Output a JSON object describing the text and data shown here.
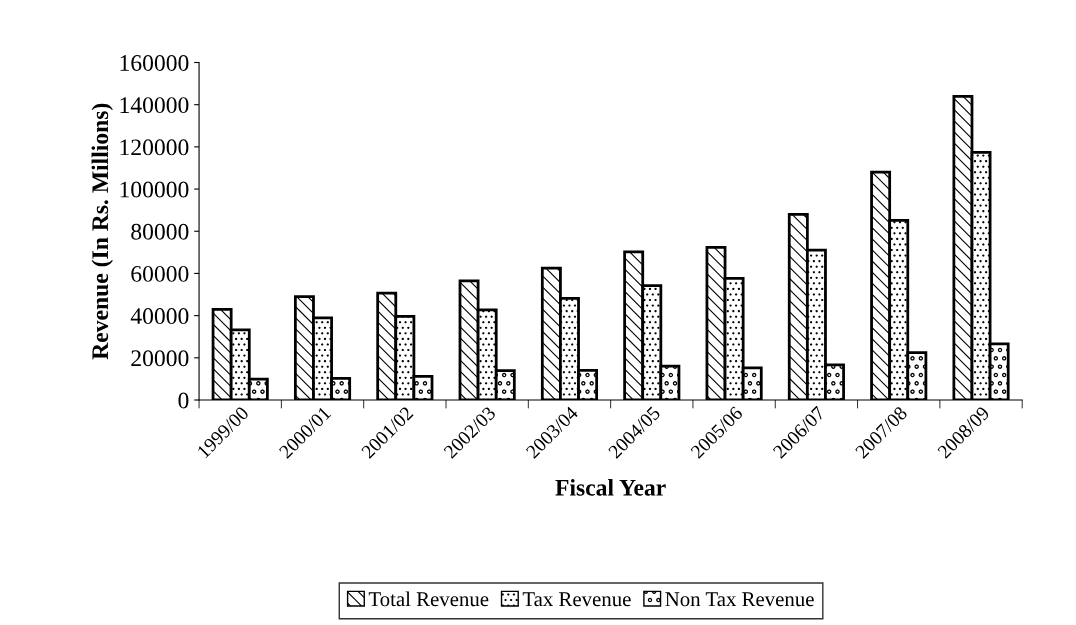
{
  "chart_data": {
    "type": "bar",
    "xlabel": "Fiscal Year",
    "ylabel": "Revenue (In Rs. Millions)",
    "categories": [
      "1999/00",
      "2000/01",
      "2001/02",
      "2002/03",
      "2003/04",
      "2004/05",
      "2005/06",
      "2006/07",
      "2007/08",
      "2008/09"
    ],
    "series": [
      {
        "name": "Total Revenue",
        "color": "#000000",
        "values": [
          43000,
          49000,
          50700,
          56500,
          62500,
          70200,
          72400,
          88000,
          108000,
          143900
        ]
      },
      {
        "name": "Tax Revenue",
        "color": "#000000",
        "values": [
          33200,
          38900,
          39600,
          42700,
          48200,
          54200,
          57700,
          71100,
          85200,
          117400
        ]
      },
      {
        "name": "Non Tax Revenue",
        "color": "#000000",
        "values": [
          9900,
          10200,
          11200,
          13900,
          14000,
          16100,
          15200,
          16700,
          22500,
          26600
        ]
      }
    ],
    "ylim": [
      0,
      160000
    ],
    "yticks": [
      0,
      20000,
      40000,
      60000,
      80000,
      100000,
      120000,
      140000,
      160000
    ],
    "grid": false,
    "legend": "bottom"
  }
}
